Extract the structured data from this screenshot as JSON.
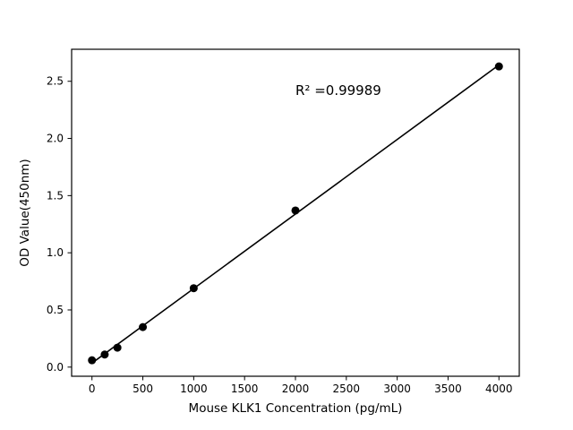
{
  "chart_data": {
    "type": "scatter",
    "title": "",
    "xlabel": "Mouse KLK1 Concentration (pg/mL)",
    "ylabel": "OD Value(450nm)",
    "x": [
      0,
      125,
      250,
      500,
      1000,
      2000,
      4000
    ],
    "y": [
      0.06,
      0.11,
      0.17,
      0.35,
      0.69,
      1.37,
      2.63
    ],
    "fit_line": true,
    "annotation": {
      "text": "R² =0.99989",
      "x": 2000,
      "y": 2.38
    },
    "xlim": [
      -200,
      4200
    ],
    "ylim": [
      -0.08,
      2.78
    ],
    "xticks": [
      0,
      500,
      1000,
      1500,
      2000,
      2500,
      3000,
      3500,
      4000
    ],
    "yticks": [
      0.0,
      0.5,
      1.0,
      1.5,
      2.0,
      2.5
    ],
    "grid": false,
    "legend": null,
    "marker_color": "#000000",
    "line_color": "#000000",
    "background_color": "#ffffff"
  }
}
